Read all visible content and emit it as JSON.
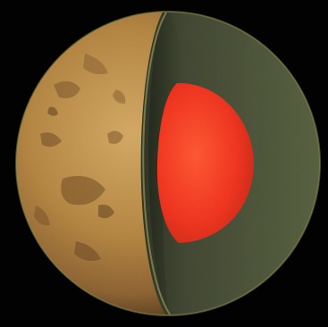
{
  "image": {
    "subject": "planet-cutaway",
    "colors": {
      "background": "#020202",
      "surface_light": "#c99a55",
      "surface_mid": "#a97a40",
      "surface_dark": "#6b4a26",
      "mantle": "#4f5638",
      "mantle_dark": "#2f3422",
      "mantle_rim": "#8b8a4c",
      "core": "#f0301c",
      "core_light": "#ff5a2e",
      "core_dark": "#c52412"
    }
  }
}
